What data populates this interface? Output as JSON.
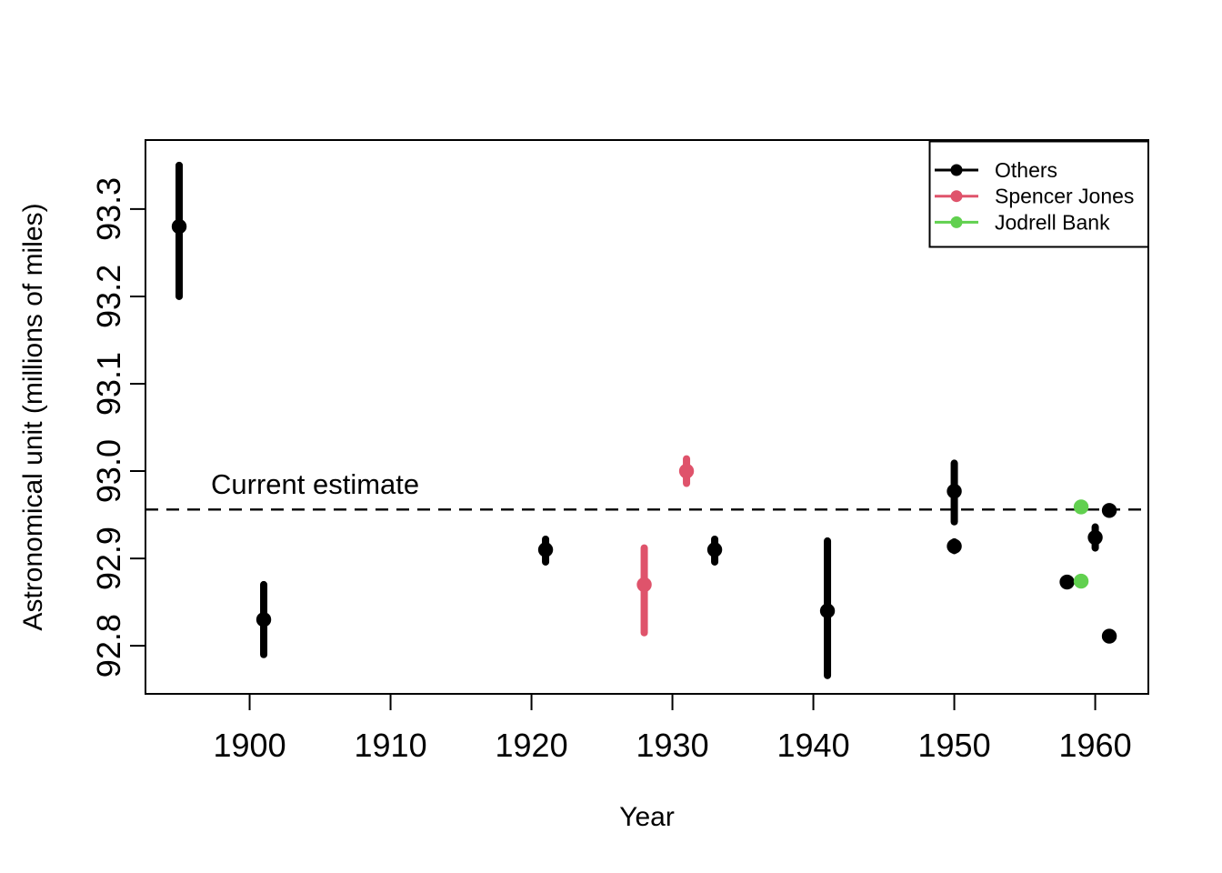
{
  "figure": {
    "background_color": "#FFFFFF",
    "axis_color": "#000000"
  },
  "chart_data": {
    "type": "scatter",
    "title": "",
    "xlabel": "Year",
    "ylabel": "Astronomical unit (millions of miles)",
    "xlim": [
      1892.61,
      1963.77
    ],
    "ylim": [
      92.745,
      93.379
    ],
    "grid": false,
    "x_ticks": [
      {
        "value": 1900,
        "label": "1900"
      },
      {
        "value": 1910,
        "label": "1910"
      },
      {
        "value": 1920,
        "label": "1920"
      },
      {
        "value": 1930,
        "label": "1930"
      },
      {
        "value": 1940,
        "label": "1940"
      },
      {
        "value": 1950,
        "label": "1950"
      },
      {
        "value": 1960,
        "label": "1960"
      }
    ],
    "y_ticks": [
      {
        "value": 92.8,
        "label": "92.8"
      },
      {
        "value": 92.9,
        "label": "92.9"
      },
      {
        "value": 93.0,
        "label": "93.0"
      },
      {
        "value": 93.1,
        "label": "93.1"
      },
      {
        "value": 93.2,
        "label": "93.2"
      },
      {
        "value": 93.3,
        "label": "93.3"
      }
    ],
    "reference_line": {
      "label": "Current estimate",
      "value": 92.956,
      "style": "dashed",
      "color": "#000000"
    },
    "legend": {
      "position": "topright",
      "entries": [
        {
          "label": "Others",
          "color": "#000000"
        },
        {
          "label": "Spencer Jones",
          "color": "#DF536B"
        },
        {
          "label": "Jodrell Bank",
          "color": "#61D04F"
        }
      ]
    },
    "series": [
      {
        "name": "Others",
        "color": "#000000",
        "points": [
          {
            "year": 1895,
            "value": 93.28,
            "lo": 93.2,
            "hi": 93.35
          },
          {
            "year": 1901,
            "value": 92.83,
            "lo": 92.79,
            "hi": 92.87
          },
          {
            "year": 1921,
            "value": 92.91,
            "lo": 92.896,
            "hi": 92.922
          },
          {
            "year": 1933,
            "value": 92.91,
            "lo": 92.896,
            "hi": 92.922
          },
          {
            "year": 1941,
            "value": 92.84,
            "lo": 92.766,
            "hi": 92.92
          },
          {
            "year": 1950,
            "value": 92.977,
            "lo": 92.942,
            "hi": 93.009
          },
          {
            "year": 1950,
            "value": 92.914,
            "lo": 92.909,
            "hi": 92.919
          },
          {
            "year": 1958,
            "value": 92.873,
            "lo": 92.872,
            "hi": 92.874
          },
          {
            "year": 1960,
            "value": 92.924,
            "lo": 92.912,
            "hi": 92.936
          },
          {
            "year": 1961,
            "value": 92.955,
            "lo": 92.954,
            "hi": 92.956
          },
          {
            "year": 1961,
            "value": 92.811,
            "lo": 92.81,
            "hi": 92.812
          }
        ]
      },
      {
        "name": "Spencer Jones",
        "color": "#DF536B",
        "points": [
          {
            "year": 1928,
            "value": 92.87,
            "lo": 92.815,
            "hi": 92.912
          },
          {
            "year": 1931,
            "value": 93.0,
            "lo": 92.986,
            "hi": 93.014
          }
        ]
      },
      {
        "name": "Jodrell Bank",
        "color": "#61D04F",
        "points": [
          {
            "year": 1959,
            "value": 92.959,
            "lo": 92.958,
            "hi": 92.96
          },
          {
            "year": 1959,
            "value": 92.874,
            "lo": 92.873,
            "hi": 92.875
          }
        ]
      }
    ]
  }
}
